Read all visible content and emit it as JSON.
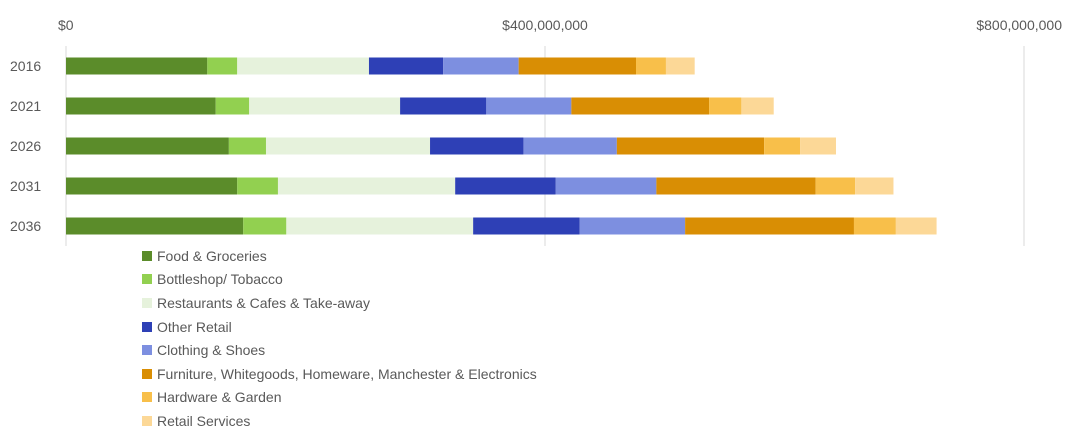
{
  "chart_data": {
    "type": "bar",
    "orientation": "horizontal",
    "stacked": true,
    "categories": [
      "2016",
      "2021",
      "2026",
      "2031",
      "2036"
    ],
    "x_ticks": [
      "$0",
      "$400,000,000",
      "$800,000,000"
    ],
    "xlim": [
      0,
      800000000
    ],
    "grid": true,
    "legend_position": "bottom-left",
    "series": [
      {
        "name": "Food & Groceries",
        "color": "#5b8c2a",
        "values": [
          118000000,
          125000000,
          136000000,
          143000000,
          148000000
        ]
      },
      {
        "name": "Bottleshop/ Tobacco",
        "color": "#92d050",
        "values": [
          25000000,
          28000000,
          31000000,
          34000000,
          36000000
        ]
      },
      {
        "name": "Restaurants & Cafes & Take-away",
        "color": "#e6f2dc",
        "values": [
          110000000,
          126000000,
          137000000,
          148000000,
          156000000
        ]
      },
      {
        "name": "Other Retail",
        "color": "#2e40b6",
        "values": [
          62000000,
          72000000,
          78000000,
          84000000,
          89000000
        ]
      },
      {
        "name": "Clothing & Shoes",
        "color": "#7d8fe0",
        "values": [
          63000000,
          71000000,
          78000000,
          84000000,
          88000000
        ]
      },
      {
        "name": "Furniture, Whitegoods, Homeware, Manchester & Electronics",
        "color": "#d98e04",
        "values": [
          98000000,
          115000000,
          123000000,
          133000000,
          141000000
        ]
      },
      {
        "name": "Hardware & Garden",
        "color": "#f8bf4a",
        "values": [
          25000000,
          27000000,
          30000000,
          33000000,
          35000000
        ]
      },
      {
        "name": "Retail Services",
        "color": "#fcd897",
        "values": [
          24000000,
          27000000,
          30000000,
          32000000,
          34000000
        ]
      }
    ]
  }
}
